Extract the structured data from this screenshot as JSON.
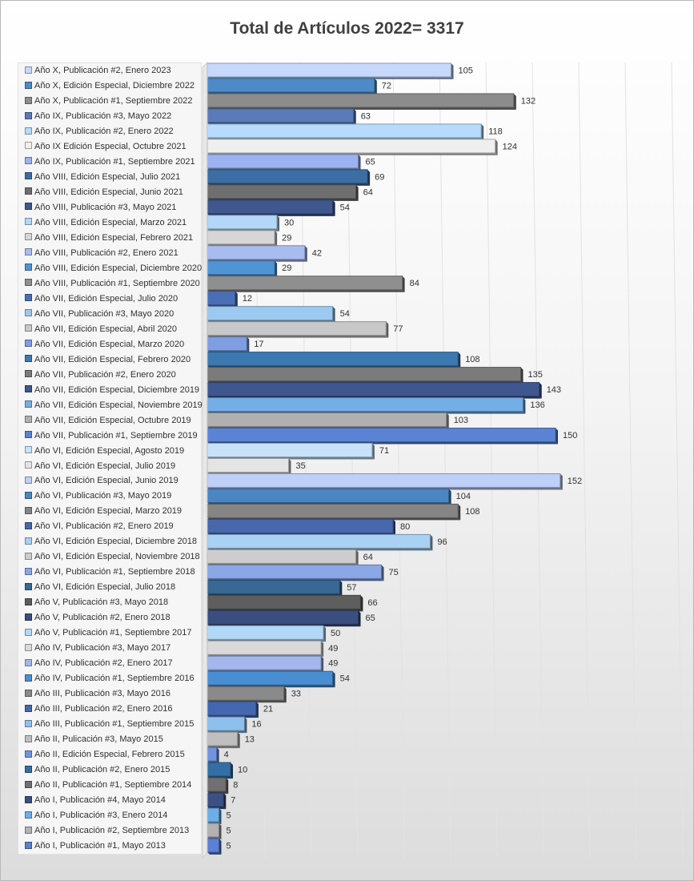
{
  "chart_data": {
    "type": "bar",
    "orientation": "horizontal",
    "title": "Total de Artículos 2022= 3317",
    "xlim": [
      0,
      200
    ],
    "grid": true,
    "legend_position": "left",
    "categories": [
      "Año X, Publicación #2, Enero 2023",
      "Año X, Edición Especial, Diciembre 2022",
      "Año X, Publicación #1, Septiembre 2022",
      "Año IX, Publicación #3, Mayo 2022",
      "Año IX, Publicación #2, Enero 2022",
      "Año IX Edición Especial, Octubre 2021",
      "Año IX, Publicación #1, Septiembre 2021",
      "Año VIII, Edición Especial, Julio 2021",
      "Año VIII, Edición Especial, Junio 2021",
      "Año VIII, Publicación #3, Mayo 2021",
      "Año VIII, Edición Especial, Marzo 2021",
      "Año VIII, Edición Especial, Febrero 2021",
      "Año VIII, Publicación #2, Enero 2021",
      "Año VIII, Edición Especial, Diciembre 2020",
      "Año VIII, Publicación #1, Septiembre 2020",
      "Año VII, Edición Especial, Julio 2020",
      "Año VII, Publicación #3, Mayo 2020",
      "Año VII, Edición Especial, Abril 2020",
      "Año VII, Edición Especial, Marzo 2020",
      "Año VII, Edición Especial, Febrero 2020",
      "Año VII, Publicación #2, Enero 2020",
      "Año VII, Edición Especial, Diciembre 2019",
      "Año VII, Edición Especial, Noviembre 2019",
      "Año VII, Edición Especial, Octubre 2019",
      "Año VII, Publicación #1, Septiembre 2019",
      "Año VI, Edición Especial, Agosto 2019",
      "Año VI, Edición Especial, Julio 2019",
      "Año VI, Edición Especial, Junio 2019",
      "Año VI, Publicación #3, Mayo 2019",
      "Año VI, Edición Especial, Marzo 2019",
      "Año VI, Publicación #2, Enero 2019",
      "Año VI, Edición Especial, Diciembre 2018",
      "Año VI, Edición Especial, Noviembre 2018",
      "Año VI, Publicación #1, Septiembre 2018",
      "Año VI, Edición Especial, Julio 2018",
      "Año V, Publicación #3, Mayo 2018",
      "Año V, Publicación #2, Enero 2018",
      "Año V, Publicación #1, Septiembre 2017",
      "Año IV, Publicación #3, Mayo 2017",
      "Año IV, Publicación #2, Enero 2017",
      "Año IV, Publicación #1, Septiembre 2016",
      "Año III, Publicación #3, Mayo 2016",
      "Año III, Publicación #2, Enero 2016",
      "Año III, Publicación #1, Septiembre 2015",
      "Año II, Pulicación #3, Mayo 2015",
      "Año II, Edición Especial, Febrero 2015",
      "Año II, Publicación #2, Enero 2015",
      "Año II, Publicación #1, Septiembre 2014",
      "Año I, Publicación #4, Mayo 2014",
      "Año I, Publicación #3, Enero 2014",
      "Año I, Publicación #2, Septiembre 2013",
      "Año I, Publicación #1, Mayo 2013"
    ],
    "values": [
      105,
      72,
      132,
      63,
      118,
      124,
      65,
      69,
      64,
      54,
      30,
      29,
      42,
      29,
      84,
      12,
      54,
      77,
      17,
      108,
      135,
      143,
      136,
      103,
      150,
      71,
      35,
      152,
      104,
      108,
      80,
      96,
      64,
      75,
      57,
      66,
      65,
      50,
      49,
      49,
      54,
      33,
      21,
      16,
      13,
      4,
      10,
      8,
      7,
      5,
      5,
      5
    ],
    "colors": [
      "#c6d9fb",
      "#4f8ac8",
      "#8c8c8c",
      "#5a7ab8",
      "#b7dcfb",
      "#efefef",
      "#9bb3f0",
      "#3c6ea3",
      "#6f6f6f",
      "#40588f",
      "#b3d7f7",
      "#d6d6d6",
      "#a9bcf0",
      "#4f95d6",
      "#8f8f8f",
      "#4a6fb7",
      "#9cc9ef",
      "#c8c8c8",
      "#7f9ee2",
      "#3c79b1",
      "#7b7b7b",
      "#3f578f",
      "#74aee7",
      "#b0b0b0",
      "#5a84d3",
      "#c7e2f9",
      "#e4e4e4",
      "#bed0f8",
      "#4a86c4",
      "#858585",
      "#4868ad",
      "#a8d1f4",
      "#cdcdcd",
      "#8ba7e6",
      "#386894",
      "#5e5e5e",
      "#3a4f80",
      "#b3d8f7",
      "#d9d9d9",
      "#a3b7ec",
      "#4a8ed2",
      "#8a8a8a",
      "#4467b0",
      "#8dc0ec",
      "#bfbfbf",
      "#7194e0",
      "#356ea4",
      "#707070",
      "#3b5186",
      "#6eaee8",
      "#b2b2b2",
      "#5b80d4"
    ]
  }
}
